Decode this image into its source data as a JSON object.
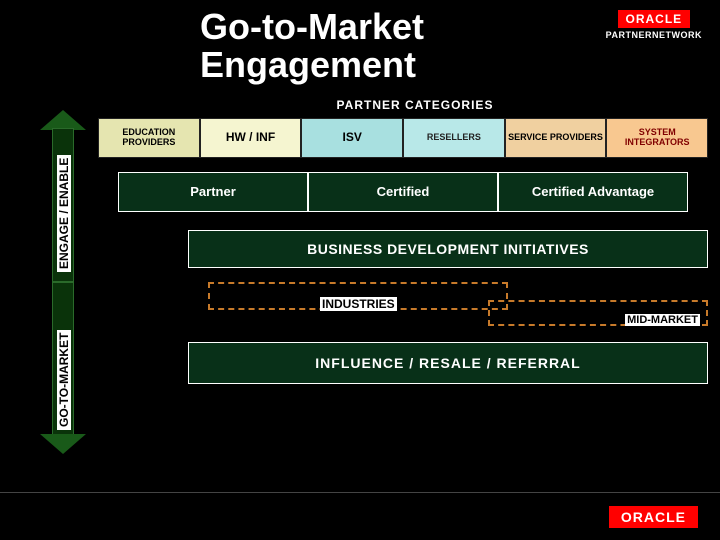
{
  "title": "Go-to-Market Engagement",
  "logo": {
    "brand": "ORACLE",
    "subtitle": "PARTNERNETWORK"
  },
  "partner_categories_label": "PARTNER CATEGORIES",
  "left_axis": {
    "top_label": "ENGAGE / ENABLE",
    "bottom_label": "GO-TO-MARKET"
  },
  "categories": [
    {
      "label": "EDUCATION PROVIDERS",
      "bg": "#e5e5b0",
      "fg": "#000000"
    },
    {
      "label": "HW / INF",
      "bg": "#f5f5d0",
      "fg": "#000000"
    },
    {
      "label": "ISV",
      "bg": "#a8e0e0",
      "fg": "#000000"
    },
    {
      "label": "RESELLERS",
      "bg": "#b8e8e8",
      "fg": "#3a4a4a"
    },
    {
      "label": "SERVICE PROVIDERS",
      "bg": "#f0d0a0",
      "fg": "#000000"
    },
    {
      "label": "SYSTEM INTEGRATORS",
      "bg": "#f8c890",
      "fg": "#7a1a00"
    }
  ],
  "tiers": [
    {
      "label": "Partner"
    },
    {
      "label": "Certified"
    },
    {
      "label": "Certified Advantage"
    }
  ],
  "bdi_label": "BUSINESS DEVELOPMENT INITIATIVES",
  "dashed": {
    "industries": "INDUSTRIES",
    "midmarket": "MID-MARKET"
  },
  "influence_label": "INFLUENCE / RESALE / REFERRAL",
  "colors": {
    "background": "#000000",
    "panel_dark_green": "#083018",
    "arrow_fill": "#0a330a",
    "arrow_tip": "#195a19",
    "dashed_border": "#c77a2a",
    "oracle_red": "#ff0000"
  }
}
